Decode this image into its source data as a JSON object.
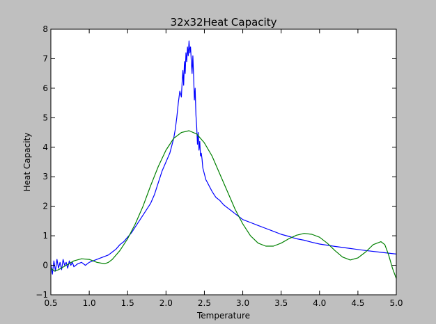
{
  "chart_data": {
    "type": "line",
    "title": "32x32Heat Capacity",
    "xlabel": "Temperature",
    "ylabel": "Heat Capacity",
    "xlim": [
      0.5,
      5.0
    ],
    "ylim": [
      -1,
      8
    ],
    "xticks": [
      "0.5",
      "1.0",
      "1.5",
      "2.0",
      "2.5",
      "3.0",
      "3.5",
      "4.0",
      "4.5",
      "5.0"
    ],
    "yticks": [
      "−1",
      "0",
      "1",
      "2",
      "3",
      "4",
      "5",
      "6",
      "7",
      "8"
    ],
    "grid": false,
    "legend": "none",
    "series": [
      {
        "color": "#0000ff",
        "x": [
          0.5,
          0.52,
          0.54,
          0.56,
          0.58,
          0.6,
          0.62,
          0.64,
          0.66,
          0.68,
          0.7,
          0.72,
          0.74,
          0.76,
          0.78,
          0.8,
          0.85,
          0.9,
          0.95,
          1.0,
          1.05,
          1.1,
          1.15,
          1.2,
          1.25,
          1.3,
          1.35,
          1.4,
          1.45,
          1.5,
          1.55,
          1.6,
          1.65,
          1.7,
          1.75,
          1.8,
          1.85,
          1.9,
          1.95,
          2.0,
          2.05,
          2.1,
          2.12,
          2.14,
          2.16,
          2.18,
          2.2,
          2.21,
          2.22,
          2.23,
          2.24,
          2.25,
          2.26,
          2.27,
          2.28,
          2.29,
          2.3,
          2.31,
          2.32,
          2.33,
          2.34,
          2.35,
          2.36,
          2.37,
          2.38,
          2.39,
          2.4,
          2.41,
          2.42,
          2.43,
          2.44,
          2.45,
          2.46,
          2.47,
          2.48,
          2.5,
          2.52,
          2.54,
          2.56,
          2.58,
          2.6,
          2.65,
          2.7,
          2.75,
          2.8,
          2.85,
          2.9,
          2.95,
          3.0,
          3.1,
          3.2,
          3.3,
          3.4,
          3.5,
          3.6,
          3.7,
          3.8,
          3.9,
          4.0,
          4.2,
          4.4,
          4.6,
          4.8,
          5.0
        ],
        "y": [
          0.05,
          -0.3,
          0.15,
          -0.2,
          0.2,
          -0.1,
          0.1,
          -0.15,
          0.2,
          0.0,
          0.1,
          -0.1,
          0.15,
          0.0,
          0.1,
          -0.05,
          0.05,
          0.1,
          0.0,
          0.1,
          0.15,
          0.2,
          0.25,
          0.3,
          0.35,
          0.45,
          0.55,
          0.7,
          0.8,
          0.95,
          1.1,
          1.3,
          1.5,
          1.7,
          1.9,
          2.1,
          2.4,
          2.8,
          3.2,
          3.5,
          3.8,
          4.3,
          4.6,
          5.0,
          5.5,
          5.9,
          5.7,
          6.2,
          6.6,
          6.1,
          6.9,
          6.5,
          7.2,
          6.9,
          7.4,
          7.1,
          7.6,
          7.2,
          7.4,
          6.9,
          6.5,
          7.1,
          6.4,
          5.6,
          6.0,
          5.1,
          4.7,
          4.1,
          4.5,
          3.9,
          4.2,
          3.7,
          3.8,
          3.6,
          3.3,
          3.1,
          2.9,
          2.8,
          2.7,
          2.6,
          2.5,
          2.3,
          2.2,
          2.05,
          1.95,
          1.85,
          1.75,
          1.65,
          1.55,
          1.45,
          1.35,
          1.25,
          1.15,
          1.05,
          0.98,
          0.9,
          0.85,
          0.78,
          0.72,
          0.64,
          0.57,
          0.5,
          0.44,
          0.38
        ]
      },
      {
        "color": "#008000",
        "x": [
          0.5,
          0.55,
          0.6,
          0.7,
          0.8,
          0.9,
          1.0,
          1.1,
          1.2,
          1.25,
          1.3,
          1.4,
          1.5,
          1.6,
          1.7,
          1.8,
          1.9,
          2.0,
          2.1,
          2.2,
          2.3,
          2.4,
          2.5,
          2.6,
          2.7,
          2.8,
          2.9,
          3.0,
          3.1,
          3.2,
          3.3,
          3.4,
          3.5,
          3.6,
          3.7,
          3.8,
          3.9,
          4.0,
          4.1,
          4.2,
          4.3,
          4.4,
          4.5,
          4.6,
          4.7,
          4.8,
          4.85,
          4.9,
          4.95,
          5.0
        ],
        "y": [
          -0.1,
          -0.2,
          -0.15,
          0.0,
          0.15,
          0.22,
          0.2,
          0.1,
          0.05,
          0.1,
          0.2,
          0.5,
          0.9,
          1.4,
          2.0,
          2.7,
          3.35,
          3.9,
          4.3,
          4.5,
          4.56,
          4.45,
          4.15,
          3.7,
          3.1,
          2.5,
          1.9,
          1.4,
          1.0,
          0.75,
          0.65,
          0.65,
          0.75,
          0.9,
          1.02,
          1.08,
          1.05,
          0.95,
          0.75,
          0.5,
          0.28,
          0.18,
          0.25,
          0.45,
          0.7,
          0.8,
          0.7,
          0.35,
          -0.1,
          -0.45
        ]
      }
    ]
  }
}
